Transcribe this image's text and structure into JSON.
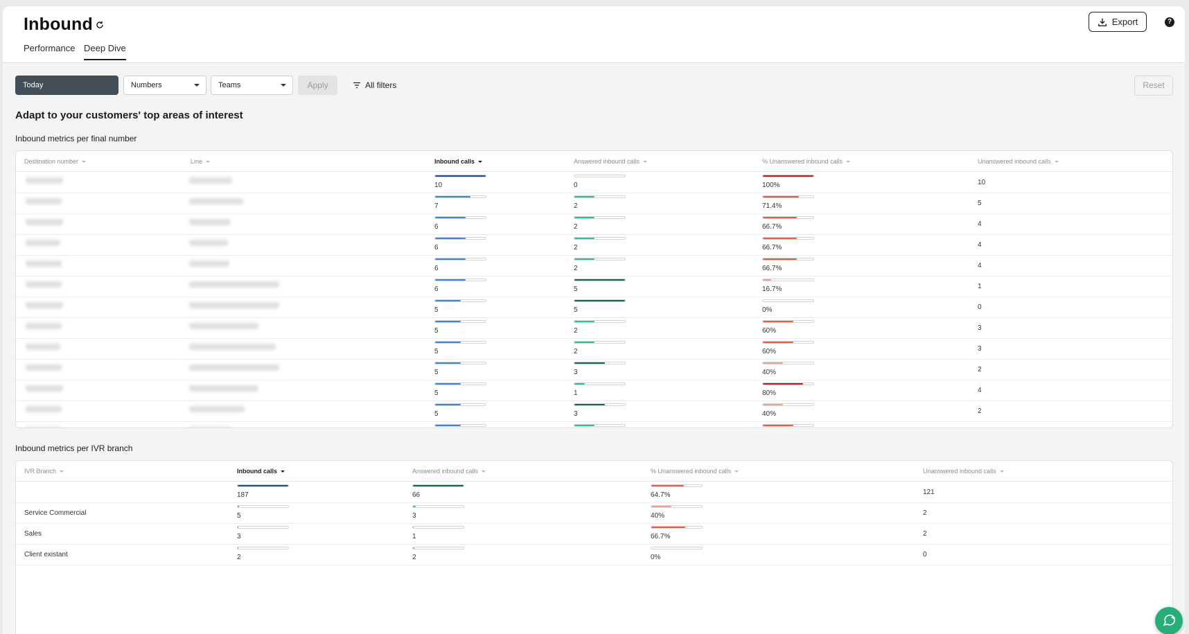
{
  "header": {
    "title": "Inbound",
    "tabs": [
      {
        "label": "Performance"
      },
      {
        "label": "Deep Dive"
      }
    ],
    "export_label": "Export",
    "help_label": "?"
  },
  "filters": {
    "date_label": "Today",
    "numbers_label": "Numbers",
    "teams_label": "Teams",
    "apply_label": "Apply",
    "all_filters_label": "All filters",
    "reset_label": "Reset"
  },
  "section_title": "Adapt to your customers' top areas of interest",
  "colors": {
    "blue_dark": "#1f4d8f",
    "blue": "#3b85db",
    "green_dark": "#0e6b4f",
    "green": "#2ec28c",
    "red_dark": "#b0261c",
    "red": "#f05a3c",
    "red_light": "#f6a08d"
  },
  "table_numbers": {
    "title": "Inbound metrics per final number",
    "columns": [
      "Destination number",
      "Line",
      "Inbound calls",
      "Answered inbound calls",
      "% Unanswered inbound calls",
      "Unanswered inbound calls"
    ],
    "rows": [
      {
        "inbound": "10",
        "inbound_pct": 1.0,
        "inbound_color": "blue_dark",
        "answered": "0",
        "answered_pct": 0,
        "answered_color": "green",
        "unans_pct_label": "100%",
        "unans_pct": 1.0,
        "unans_color": "red_dark",
        "unanswered": "10"
      },
      {
        "inbound": "7",
        "inbound_pct": 0.7,
        "inbound_color": "blue",
        "answered": "2",
        "answered_pct": 0.4,
        "answered_color": "green",
        "unans_pct_label": "71.4%",
        "unans_pct": 0.714,
        "unans_color": "red",
        "unanswered": "5"
      },
      {
        "inbound": "6",
        "inbound_pct": 0.6,
        "inbound_color": "blue",
        "answered": "2",
        "answered_pct": 0.4,
        "answered_color": "green",
        "unans_pct_label": "66.7%",
        "unans_pct": 0.667,
        "unans_color": "red",
        "unanswered": "4"
      },
      {
        "inbound": "6",
        "inbound_pct": 0.6,
        "inbound_color": "blue",
        "answered": "2",
        "answered_pct": 0.4,
        "answered_color": "green",
        "unans_pct_label": "66.7%",
        "unans_pct": 0.667,
        "unans_color": "red",
        "unanswered": "4"
      },
      {
        "inbound": "6",
        "inbound_pct": 0.6,
        "inbound_color": "blue",
        "answered": "2",
        "answered_pct": 0.4,
        "answered_color": "green",
        "unans_pct_label": "66.7%",
        "unans_pct": 0.667,
        "unans_color": "red",
        "unanswered": "4"
      },
      {
        "inbound": "6",
        "inbound_pct": 0.6,
        "inbound_color": "blue",
        "answered": "5",
        "answered_pct": 1.0,
        "answered_color": "green_dark",
        "unans_pct_label": "16.7%",
        "unans_pct": 0.167,
        "unans_color": "red_light",
        "unanswered": "1"
      },
      {
        "inbound": "5",
        "inbound_pct": 0.5,
        "inbound_color": "blue",
        "answered": "5",
        "answered_pct": 1.0,
        "answered_color": "green_dark",
        "unans_pct_label": "0%",
        "unans_pct": 0,
        "unans_color": "red",
        "unanswered": "0"
      },
      {
        "inbound": "5",
        "inbound_pct": 0.5,
        "inbound_color": "blue",
        "answered": "2",
        "answered_pct": 0.4,
        "answered_color": "green",
        "unans_pct_label": "60%",
        "unans_pct": 0.6,
        "unans_color": "red",
        "unanswered": "3"
      },
      {
        "inbound": "5",
        "inbound_pct": 0.5,
        "inbound_color": "blue",
        "answered": "2",
        "answered_pct": 0.4,
        "answered_color": "green",
        "unans_pct_label": "60%",
        "unans_pct": 0.6,
        "unans_color": "red",
        "unanswered": "3"
      },
      {
        "inbound": "5",
        "inbound_pct": 0.5,
        "inbound_color": "blue",
        "answered": "3",
        "answered_pct": 0.6,
        "answered_color": "green_dark",
        "unans_pct_label": "40%",
        "unans_pct": 0.4,
        "unans_color": "red_light",
        "unanswered": "2"
      },
      {
        "inbound": "5",
        "inbound_pct": 0.5,
        "inbound_color": "blue",
        "answered": "1",
        "answered_pct": 0.2,
        "answered_color": "green",
        "unans_pct_label": "80%",
        "unans_pct": 0.8,
        "unans_color": "red_dark",
        "unanswered": "4"
      },
      {
        "inbound": "5",
        "inbound_pct": 0.5,
        "inbound_color": "blue",
        "answered": "3",
        "answered_pct": 0.6,
        "answered_color": "green_dark",
        "unans_pct_label": "40%",
        "unans_pct": 0.4,
        "unans_color": "red_light",
        "unanswered": "2"
      },
      {
        "inbound": "",
        "inbound_pct": 0.5,
        "inbound_color": "blue",
        "answered": "",
        "answered_pct": 0.4,
        "answered_color": "green",
        "unans_pct_label": "",
        "unans_pct": 0.6,
        "unans_color": "red",
        "unanswered": ""
      }
    ]
  },
  "table_ivr": {
    "title": "Inbound metrics per IVR branch",
    "columns": [
      "IVR Branch",
      "Inbound calls",
      "Answered inbound calls",
      "% Unanswered inbound calls",
      "Unanswered inbound calls"
    ],
    "rows": [
      {
        "branch": "",
        "inbound": "187",
        "inbound_pct": 1.0,
        "inbound_color": "blue_dark",
        "answered": "66",
        "answered_pct": 1.0,
        "answered_color": "green_dark",
        "unans_pct_label": "64.7%",
        "unans_pct": 0.647,
        "unans_color": "red",
        "unanswered": "121"
      },
      {
        "branch": "Service Commercial",
        "inbound": "5",
        "inbound_pct": 0.03,
        "inbound_color": "blue",
        "answered": "3",
        "answered_pct": 0.05,
        "answered_color": "green",
        "unans_pct_label": "40%",
        "unans_pct": 0.4,
        "unans_color": "red_light",
        "unanswered": "2"
      },
      {
        "branch": "Sales",
        "inbound": "3",
        "inbound_pct": 0.02,
        "inbound_color": "blue",
        "answered": "1",
        "answered_pct": 0.02,
        "answered_color": "green",
        "unans_pct_label": "66.7%",
        "unans_pct": 0.667,
        "unans_color": "red",
        "unanswered": "2"
      },
      {
        "branch": "Client existant",
        "inbound": "2",
        "inbound_pct": 0.01,
        "inbound_color": "blue",
        "answered": "2",
        "answered_pct": 0.03,
        "answered_color": "green",
        "unans_pct_label": "0%",
        "unans_pct": 0,
        "unans_color": "red",
        "unanswered": "0"
      }
    ]
  }
}
